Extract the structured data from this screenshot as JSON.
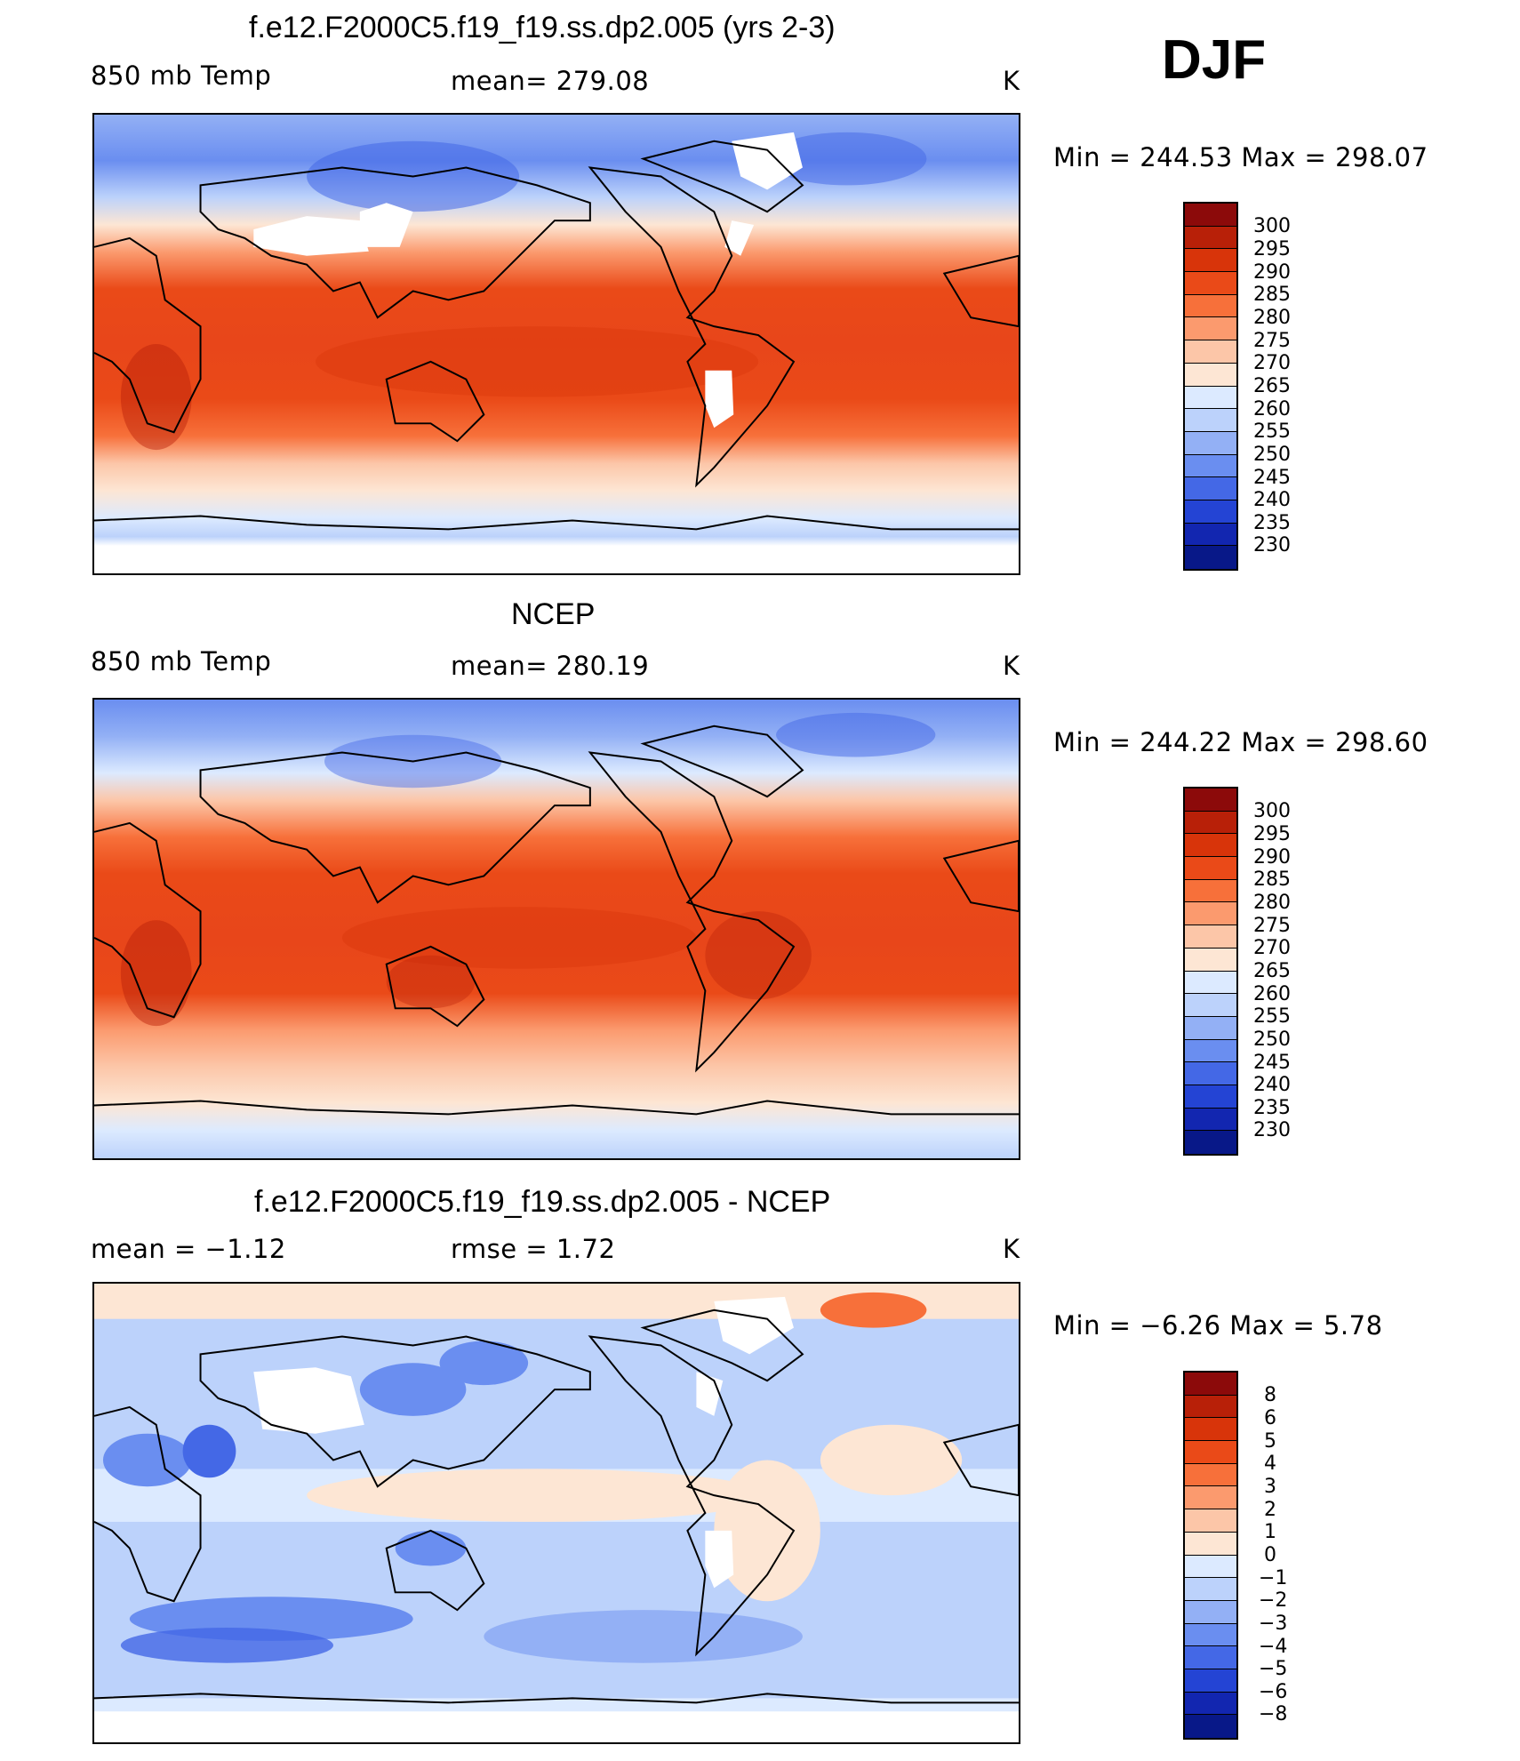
{
  "season": "DJF",
  "panels": [
    {
      "title": "f.e12.F2000C5.f19_f19.ss.dp2.005 (yrs 2-3)",
      "left_label": "850 mb Temp",
      "center_label": "mean=  279.08",
      "units": "K",
      "min_max": "Min  =  244.53  Max  =  298.07",
      "colorbar_ticks": [
        "300",
        "295",
        "290",
        "285",
        "280",
        "275",
        "270",
        "265",
        "260",
        "255",
        "250",
        "245",
        "240",
        "235",
        "230"
      ],
      "colorbar_colors": [
        "#8c0a0a",
        "#b82008",
        "#d8340a",
        "#ea4a18",
        "#f7703a",
        "#fb9a6e",
        "#fcc6a8",
        "#fde6d4",
        "#dceaff",
        "#bcd2fb",
        "#93b0f5",
        "#6a8ef0",
        "#4468e6",
        "#2444d4",
        "#1226b0",
        "#081888"
      ]
    },
    {
      "title": "NCEP",
      "left_label": "850 mb Temp",
      "center_label": "mean=  280.19",
      "units": "K",
      "min_max": "Min  =  244.22  Max  =  298.60",
      "colorbar_ticks": [
        "300",
        "295",
        "290",
        "285",
        "280",
        "275",
        "270",
        "265",
        "260",
        "255",
        "250",
        "245",
        "240",
        "235",
        "230"
      ],
      "colorbar_colors": [
        "#8c0a0a",
        "#b82008",
        "#d8340a",
        "#ea4a18",
        "#f7703a",
        "#fb9a6e",
        "#fcc6a8",
        "#fde6d4",
        "#dceaff",
        "#bcd2fb",
        "#93b0f5",
        "#6a8ef0",
        "#4468e6",
        "#2444d4",
        "#1226b0",
        "#081888"
      ]
    },
    {
      "title": "f.e12.F2000C5.f19_f19.ss.dp2.005 - NCEP",
      "left_label": "mean =    −1.12",
      "center_label": "rmse =      1.72",
      "units": "K",
      "min_max": "Min  =    −6.26  Max  =      5.78",
      "colorbar_ticks": [
        "8",
        "6",
        "5",
        "4",
        "3",
        "2",
        "1",
        "0",
        "−1",
        "−2",
        "−3",
        "−4",
        "−5",
        "−6",
        "−8"
      ],
      "colorbar_colors": [
        "#8c0a0a",
        "#b82008",
        "#d8340a",
        "#ea4a18",
        "#f7703a",
        "#fb9a6e",
        "#fcc6a8",
        "#fde6d4",
        "#dceaff",
        "#bcd2fb",
        "#93b0f5",
        "#6a8ef0",
        "#4468e6",
        "#2444d4",
        "#1226b0",
        "#081888"
      ]
    }
  ]
}
